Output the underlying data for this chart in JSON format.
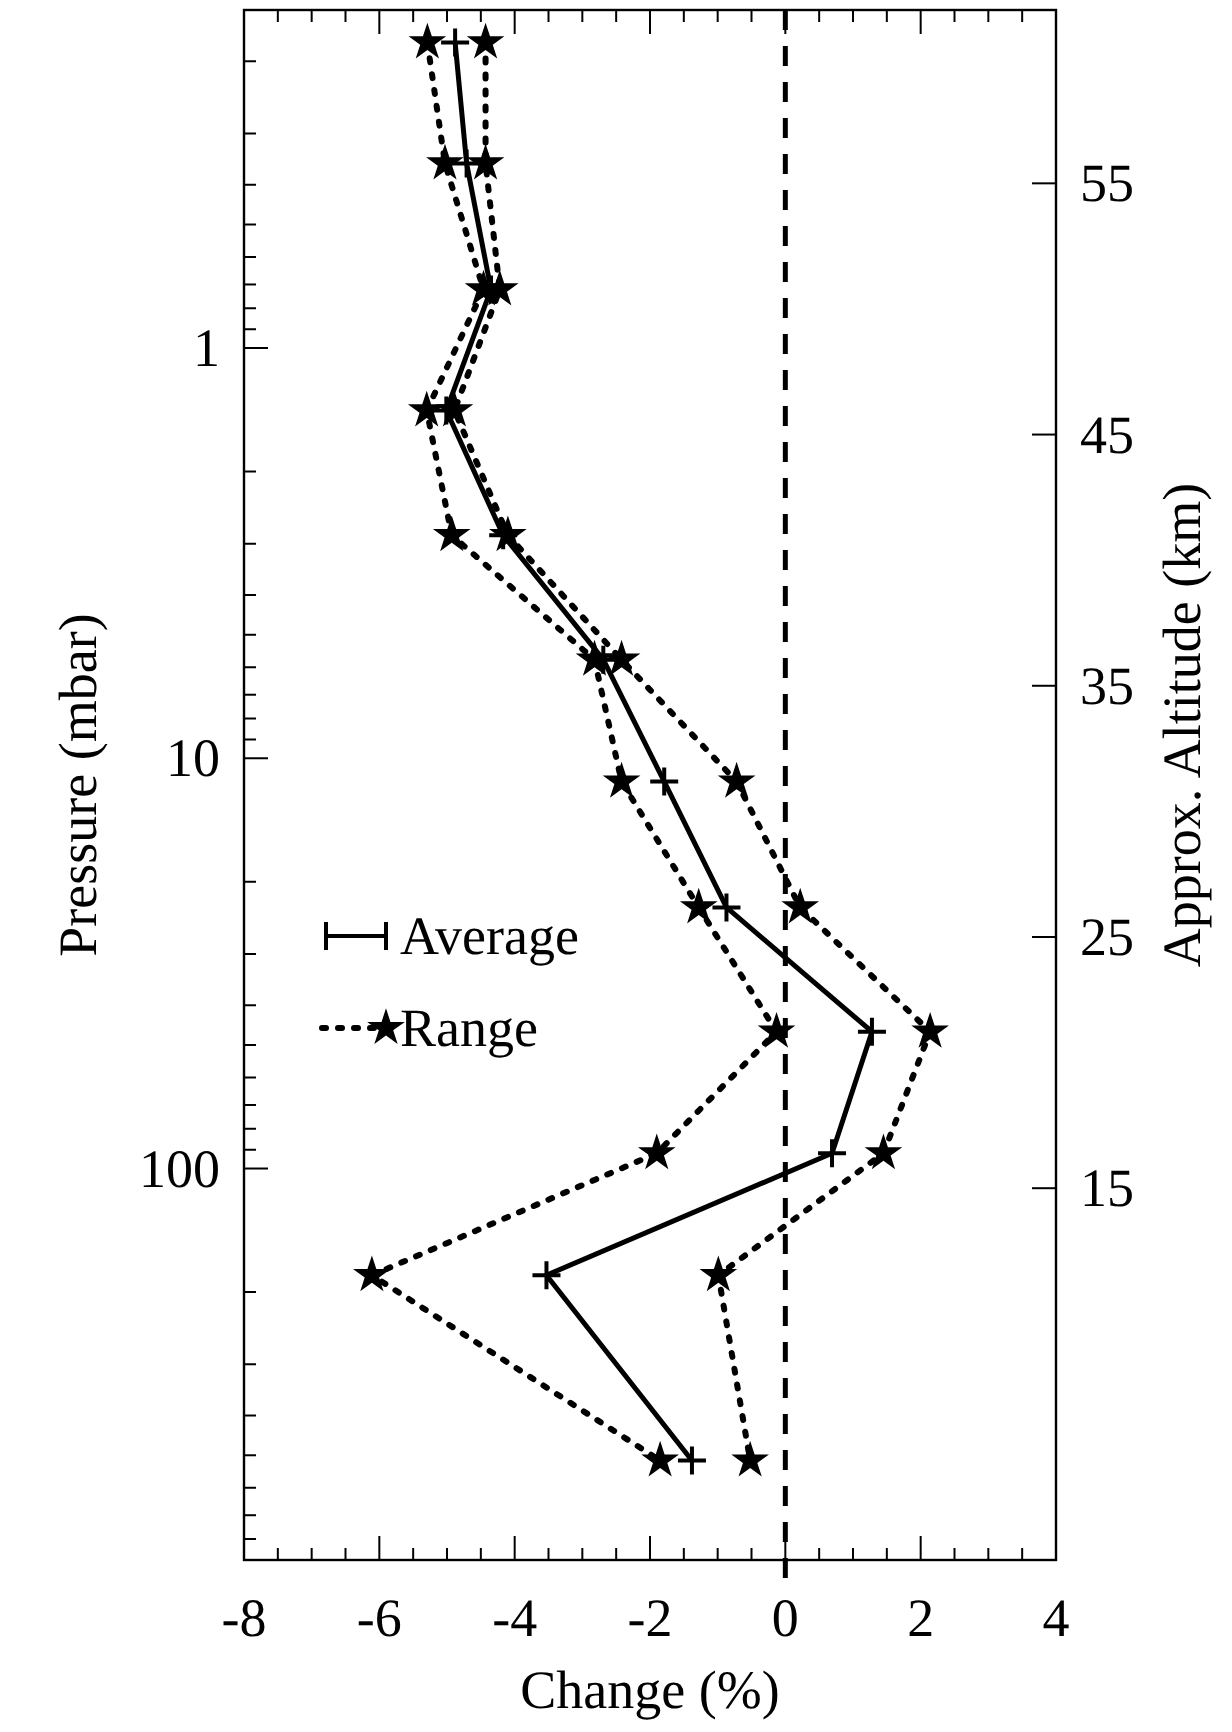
{
  "chart_data": {
    "type": "line",
    "xlabel": "Change (%)",
    "ylabel": "Pressure (mbar)",
    "y2label": "Approx. Altitude (km)",
    "xlim": [
      -8,
      4
    ],
    "xticks": [
      -8,
      {
        "value": -7.5,
        "label": null
      },
      {
        "value": -7,
        "label": null
      },
      {
        "value": -6.5,
        "label": null
      },
      -6,
      {
        "value": -5.5,
        "label": null
      },
      {
        "value": -5,
        "label": null
      },
      {
        "value": -4.5,
        "label": null
      },
      -4,
      {
        "value": -3.5,
        "label": null
      },
      {
        "value": -3,
        "label": null
      },
      {
        "value": -2.5,
        "label": null
      },
      -2,
      {
        "value": -1.5,
        "label": null
      },
      {
        "value": -1,
        "label": null
      },
      {
        "value": -0.5,
        "label": null
      },
      0,
      {
        "value": 0.5,
        "label": null
      },
      {
        "value": 1,
        "label": null
      },
      {
        "value": 1.5,
        "label": null
      },
      2,
      {
        "value": 2.5,
        "label": null
      },
      {
        "value": 3,
        "label": null
      },
      {
        "value": 3.5,
        "label": null
      },
      4
    ],
    "ylim": [
      900,
      0.15
    ],
    "log": "y",
    "yticks": [
      {
        "value": 0.2,
        "label": null
      },
      {
        "value": 0.3,
        "label": null
      },
      {
        "value": 0.4,
        "label": null
      },
      {
        "value": 0.5,
        "label": null
      },
      {
        "value": 0.6,
        "label": null
      },
      {
        "value": 0.7,
        "label": null
      },
      {
        "value": 0.8,
        "label": null
      },
      {
        "value": 0.9,
        "label": null
      },
      1,
      {
        "value": 2,
        "label": null
      },
      {
        "value": 3,
        "label": null
      },
      {
        "value": 4,
        "label": null
      },
      {
        "value": 5,
        "label": null
      },
      {
        "value": 6,
        "label": null
      },
      {
        "value": 7,
        "label": null
      },
      {
        "value": 8,
        "label": null
      },
      {
        "value": 9,
        "label": null
      },
      10,
      {
        "value": 20,
        "label": null
      },
      {
        "value": 30,
        "label": null
      },
      {
        "value": 40,
        "label": null
      },
      {
        "value": 50,
        "label": null
      },
      {
        "value": 60,
        "label": null
      },
      {
        "value": 70,
        "label": null
      },
      {
        "value": 80,
        "label": null
      },
      {
        "value": 90,
        "label": null
      },
      100,
      {
        "value": 200,
        "label": null
      },
      {
        "value": 300,
        "label": null
      },
      {
        "value": 400,
        "label": null
      },
      {
        "value": 500,
        "label": null
      },
      {
        "value": 600,
        "label": null
      },
      {
        "value": 700,
        "label": null
      },
      {
        "value": 800,
        "label": null
      }
    ],
    "y2lim": [
      0.2,
      61.9
    ],
    "y2ticks": [
      55,
      45,
      35,
      25,
      15
    ],
    "legend": "left",
    "grid": false,
    "ref_lines": [
      {
        "axis": "x",
        "value": 0,
        "color": "#000000",
        "line_style": "dashed"
      }
    ],
    "series": [
      {
        "name": "Average",
        "color": "#000000",
        "marker": "cross",
        "line_style": "solid",
        "x": [
          -4.88,
          -4.71,
          -4.35,
          -5.01,
          -4.17,
          -2.69,
          -1.79,
          -0.87,
          1.28,
          0.69,
          -3.53,
          -1.38
        ],
        "values": [
          0.18,
          0.355,
          0.72,
          1.42,
          2.86,
          5.75,
          11.4,
          23.1,
          46.4,
          91.8,
          182,
          515
        ]
      },
      {
        "name": "Range",
        "color": "#000000",
        "marker": "star",
        "line_style": "dotted",
        "x": [
          -5.29,
          -5.03,
          -4.46,
          -5.3,
          -4.93,
          -2.82,
          -2.42,
          -1.28,
          -0.13,
          -1.9,
          -6.11,
          -1.85
        ],
        "values": [
          0.18,
          0.355,
          0.72,
          1.42,
          2.86,
          5.75,
          11.4,
          23.1,
          46.4,
          91.8,
          182,
          515
        ]
      },
      {
        "color": "#000000",
        "marker": "star",
        "line_style": "dotted",
        "x": [
          -4.43,
          -4.43,
          -4.22,
          -4.89,
          -4.1,
          -2.42,
          -0.72,
          0.22,
          2.14,
          1.45,
          -0.99,
          -0.52
        ],
        "values": [
          0.18,
          0.355,
          0.72,
          1.42,
          2.86,
          5.75,
          11.4,
          23.1,
          46.4,
          91.8,
          182,
          515
        ]
      }
    ]
  }
}
